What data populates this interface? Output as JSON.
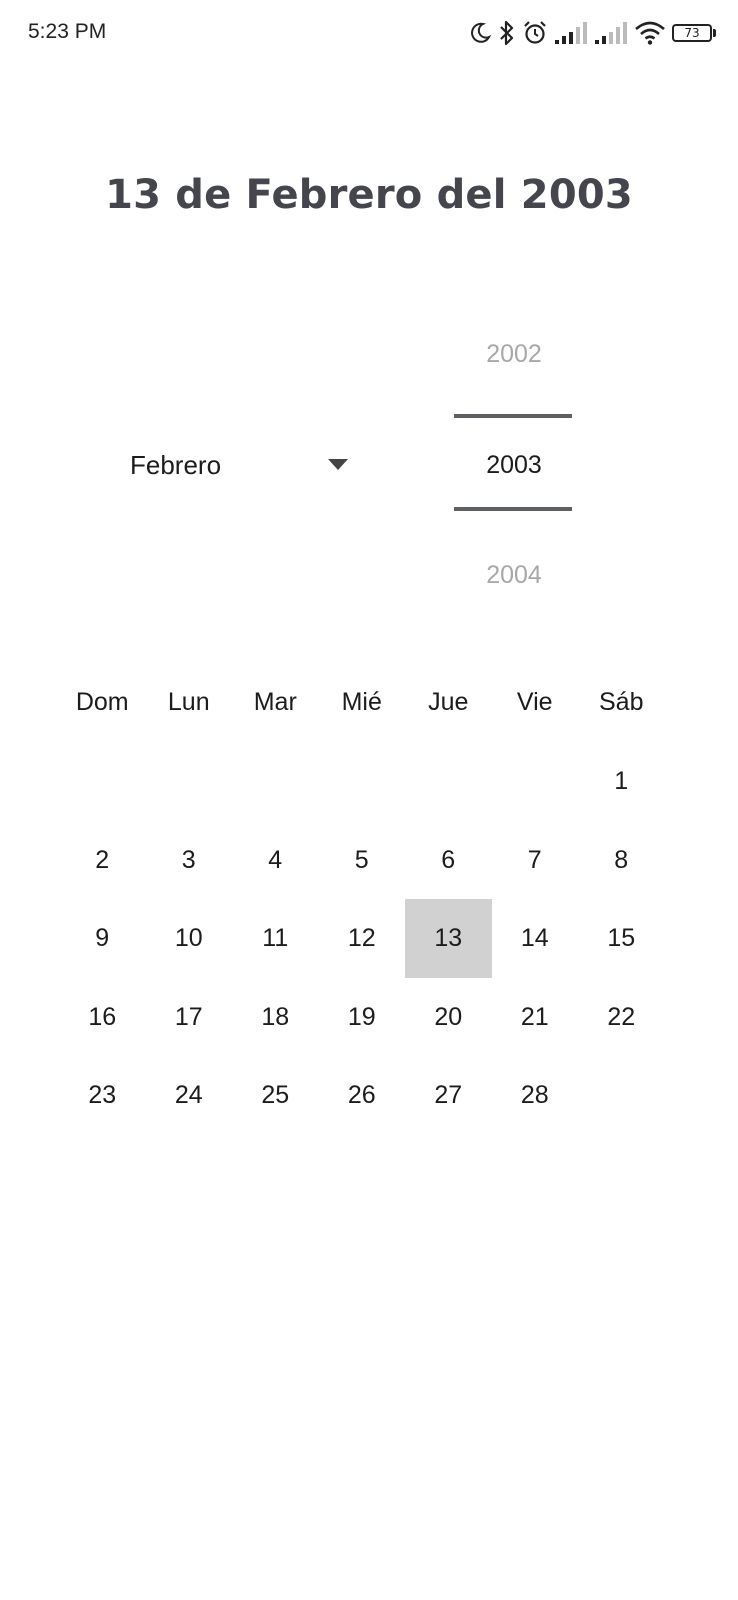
{
  "status_bar": {
    "time": "5:23 PM",
    "icons": [
      "moon-icon",
      "bluetooth-icon",
      "alarm-icon",
      "signal-icon",
      "signal-icon",
      "wifi-icon",
      "battery-icon"
    ],
    "battery_level": "73"
  },
  "header": {
    "date_title": "13 de Febrero del 2003"
  },
  "month_selector": {
    "selected": "Febrero"
  },
  "year_picker": {
    "previous": "2002",
    "selected": "2003",
    "next": "2004"
  },
  "calendar": {
    "weekdays": [
      "Dom",
      "Lun",
      "Mar",
      "Mié",
      "Jue",
      "Vie",
      "Sáb"
    ],
    "weeks": [
      [
        "",
        "",
        "",
        "",
        "",
        "",
        "1"
      ],
      [
        "2",
        "3",
        "4",
        "5",
        "6",
        "7",
        "8"
      ],
      [
        "9",
        "10",
        "11",
        "12",
        "13",
        "14",
        "15"
      ],
      [
        "16",
        "17",
        "18",
        "19",
        "20",
        "21",
        "22"
      ],
      [
        "23",
        "24",
        "25",
        "26",
        "27",
        "28",
        ""
      ]
    ],
    "selected_day": "13",
    "selected_color": "#d1d1d1"
  }
}
